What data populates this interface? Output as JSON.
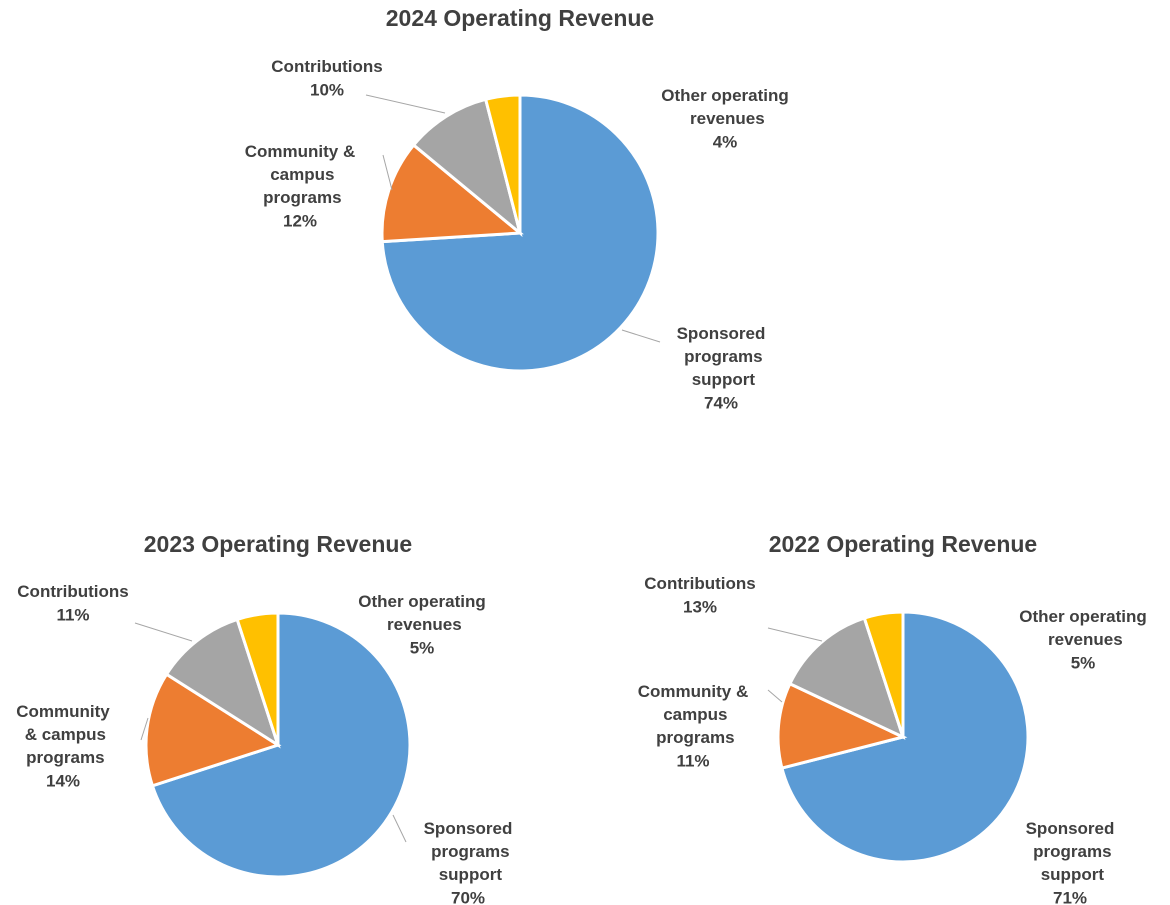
{
  "chart_data": [
    {
      "type": "pie",
      "title": "2024 Operating Revenue",
      "categories": [
        "Sponsored programs support",
        "Community & campus programs",
        "Contributions",
        "Other operating revenues"
      ],
      "values": [
        74,
        12,
        10,
        4
      ],
      "value_labels": [
        "74%",
        "12%",
        "10%",
        "4%"
      ],
      "colors": [
        "#5b9bd5",
        "#ed7d31",
        "#a5a5a5",
        "#ffc000"
      ]
    },
    {
      "type": "pie",
      "title": "2023 Operating Revenue",
      "categories": [
        "Sponsored programs support",
        "Community & campus programs",
        "Contributions",
        "Other operating revenues"
      ],
      "values": [
        70,
        14,
        11,
        5
      ],
      "value_labels": [
        "70%",
        "14%",
        "11%",
        "5%"
      ],
      "colors": [
        "#5b9bd5",
        "#ed7d31",
        "#a5a5a5",
        "#ffc000"
      ]
    },
    {
      "type": "pie",
      "title": "2022 Operating Revenue",
      "categories": [
        "Sponsored programs support",
        "Community & campus programs",
        "Contributions",
        "Other operating revenues"
      ],
      "values": [
        71,
        11,
        13,
        5
      ],
      "value_labels": [
        "71%",
        "11%",
        "13%",
        "5%"
      ],
      "colors": [
        "#5b9bd5",
        "#ed7d31",
        "#a5a5a5",
        "#ffc000"
      ]
    }
  ]
}
